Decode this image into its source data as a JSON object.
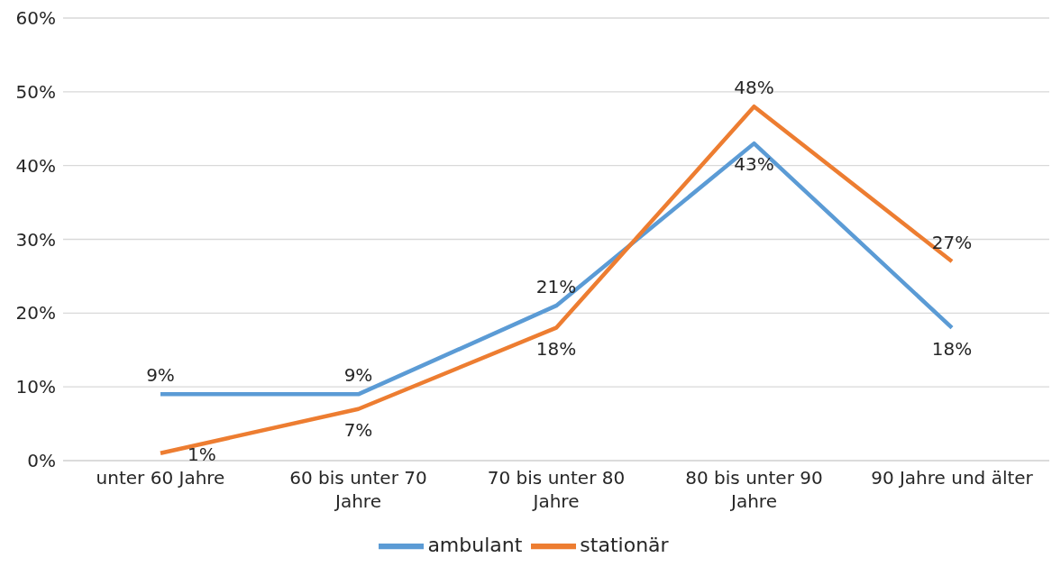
{
  "chart_data": {
    "type": "line",
    "categories": [
      "unter 60 Jahre",
      "60 bis unter 70 Jahre",
      "70 bis unter 80 Jahre",
      "80 bis unter 90 Jahre",
      "90 Jahre und älter"
    ],
    "series": [
      {
        "name": "ambulant",
        "color": "#5b9bd5",
        "values": [
          9,
          9,
          21,
          43,
          18
        ],
        "value_labels": [
          "9%",
          "9%",
          "21%",
          "43%",
          "18%"
        ]
      },
      {
        "name": "stationär",
        "color": "#ed7d31",
        "values": [
          1,
          7,
          18,
          48,
          27
        ],
        "value_labels": [
          "1%",
          "7%",
          "18%",
          "48%",
          "27%"
        ]
      }
    ],
    "ylim": [
      0,
      60
    ],
    "yticks": [
      {
        "value": 0,
        "label": "0%"
      },
      {
        "value": 10,
        "label": "10%"
      },
      {
        "value": 20,
        "label": "20%"
      },
      {
        "value": 30,
        "label": "30%"
      },
      {
        "value": 40,
        "label": "40%"
      },
      {
        "value": 50,
        "label": "50%"
      },
      {
        "value": 60,
        "label": "60%"
      }
    ],
    "grid": "y",
    "legend": "bottom",
    "marker": "none",
    "line_style": "solid"
  }
}
